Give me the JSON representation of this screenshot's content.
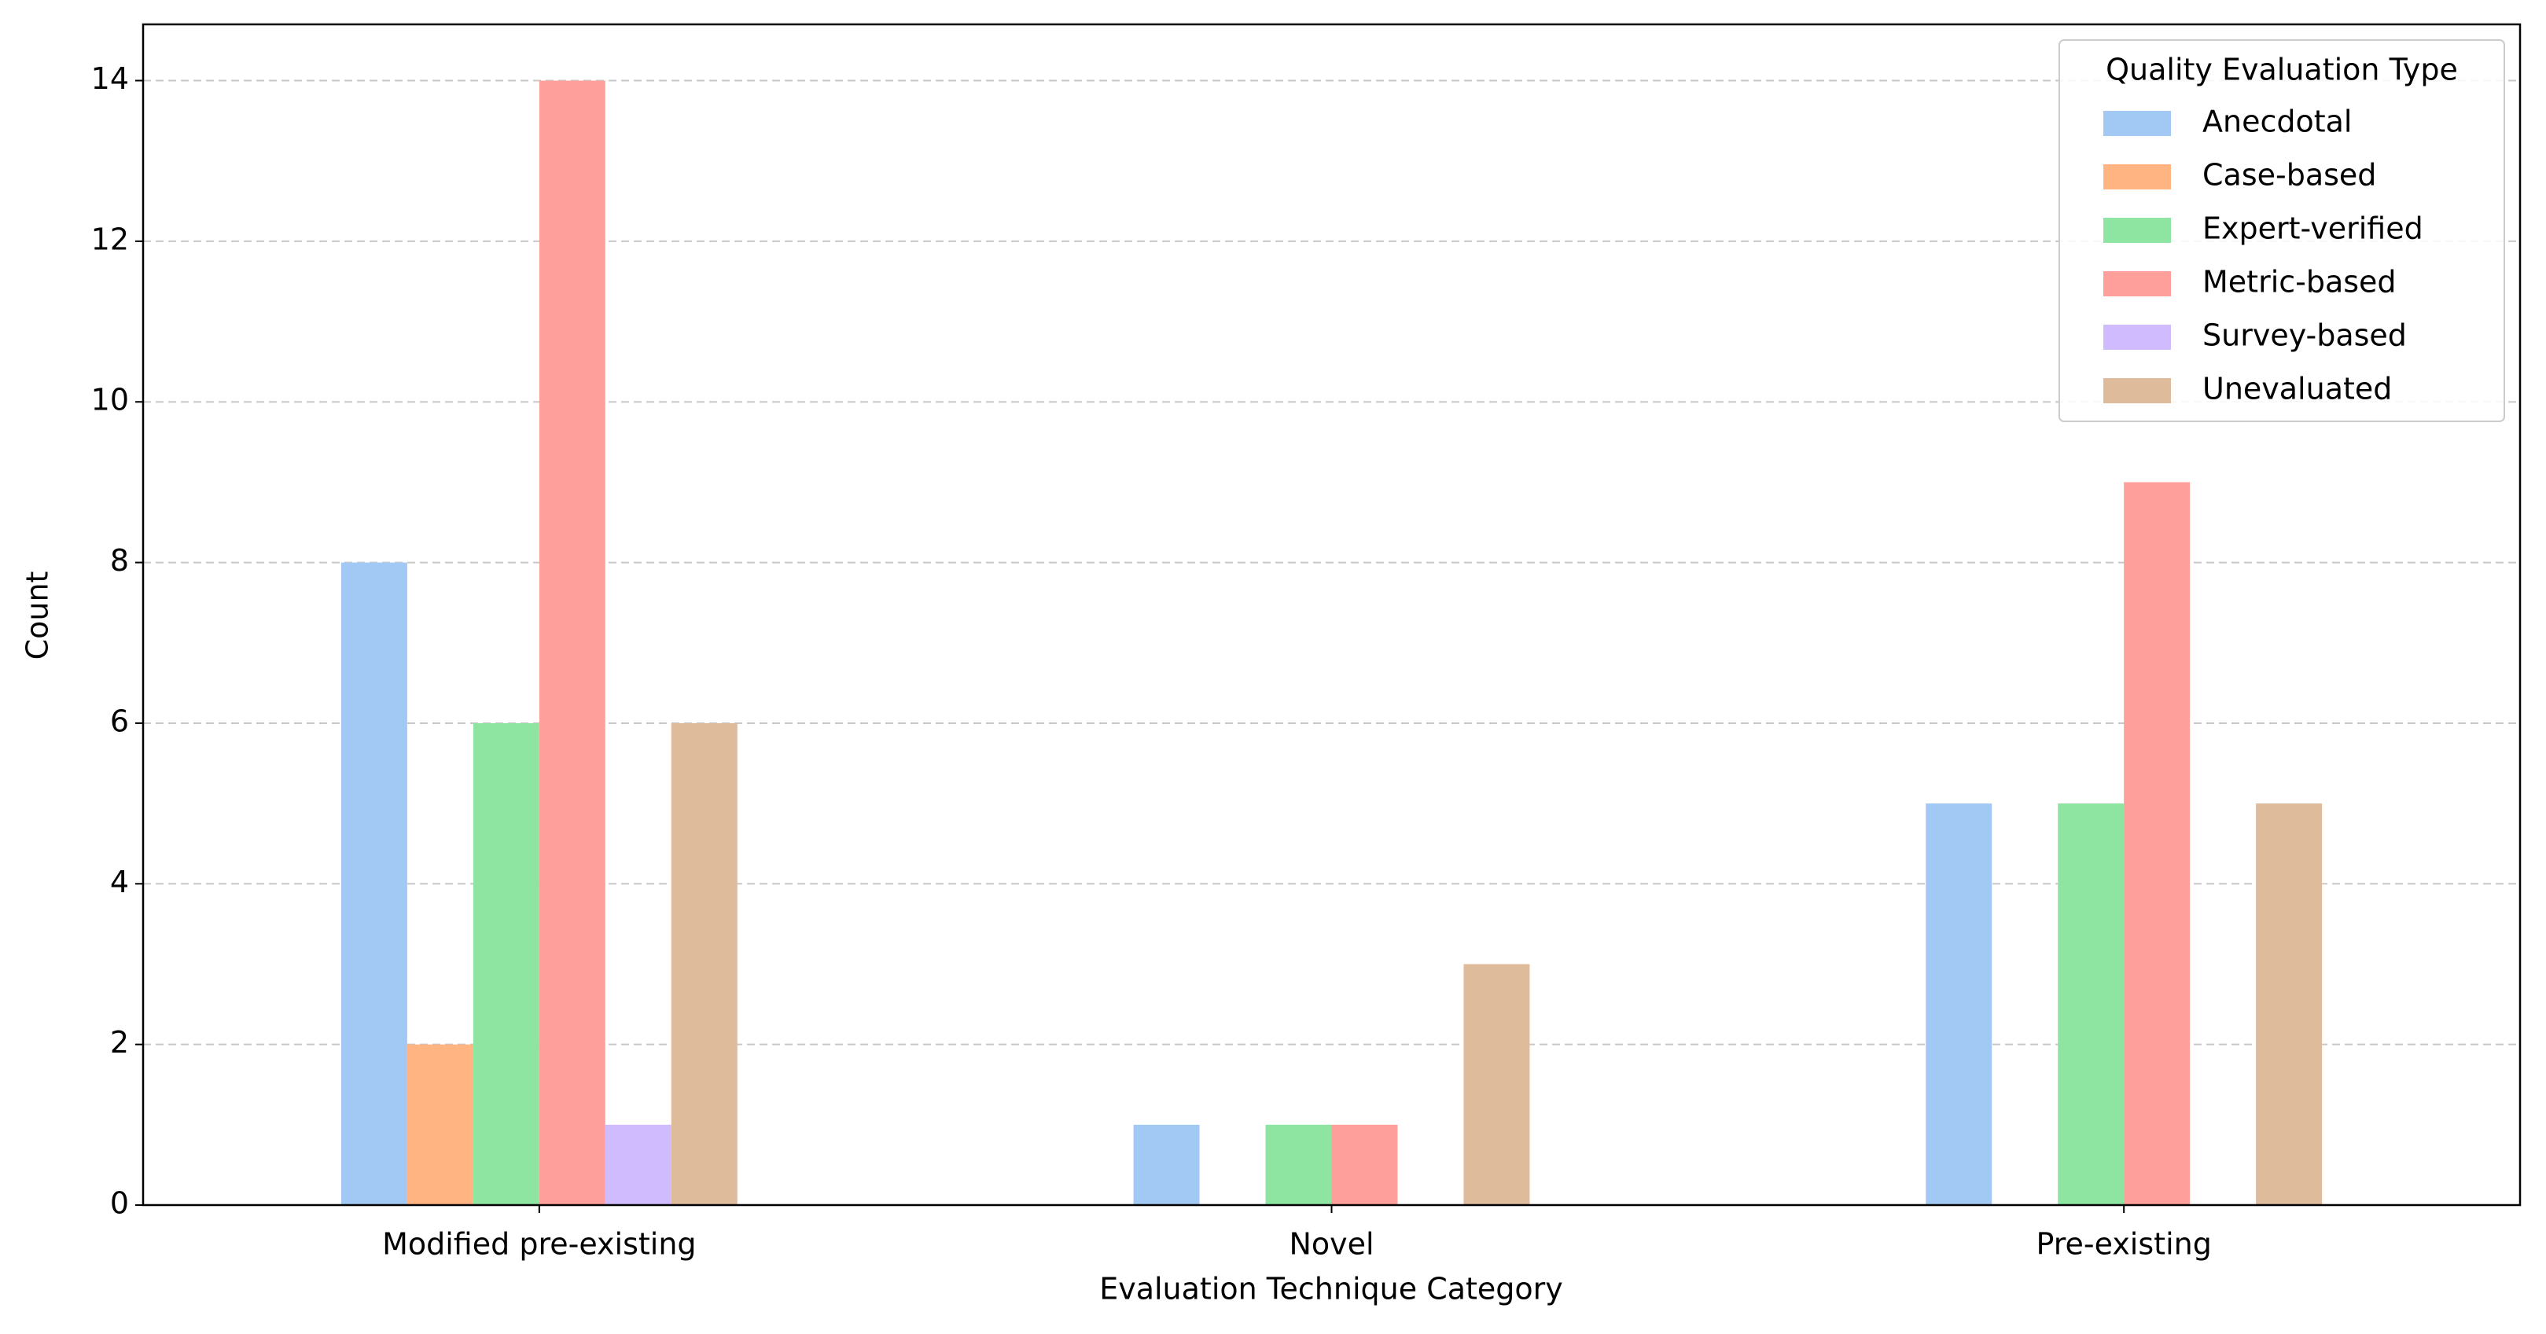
{
  "chart_data": {
    "type": "bar",
    "xlabel": "Evaluation Technique Category",
    "ylabel": "Count",
    "categories": [
      "Modified pre-existing",
      "Novel",
      "Pre-existing"
    ],
    "series": [
      {
        "name": "Anecdotal",
        "color": "#a1c9f4",
        "values": [
          8,
          1,
          5
        ]
      },
      {
        "name": "Case-based",
        "color": "#ffb482",
        "values": [
          2,
          0,
          0
        ]
      },
      {
        "name": "Expert-verified",
        "color": "#8de5a1",
        "values": [
          6,
          1,
          5
        ]
      },
      {
        "name": "Metric-based",
        "color": "#ff9f9b",
        "values": [
          14,
          1,
          9
        ]
      },
      {
        "name": "Survey-based",
        "color": "#d0bbff",
        "values": [
          1,
          0,
          0
        ]
      },
      {
        "name": "Unevaluated",
        "color": "#debb9b",
        "values": [
          6,
          3,
          5
        ]
      }
    ],
    "ylim": [
      0,
      14.7
    ],
    "yticks": [
      0,
      2,
      4,
      6,
      8,
      10,
      12,
      14
    ],
    "grid": true,
    "legend": "upper right",
    "legend_title": "Quality Evaluation Type"
  }
}
